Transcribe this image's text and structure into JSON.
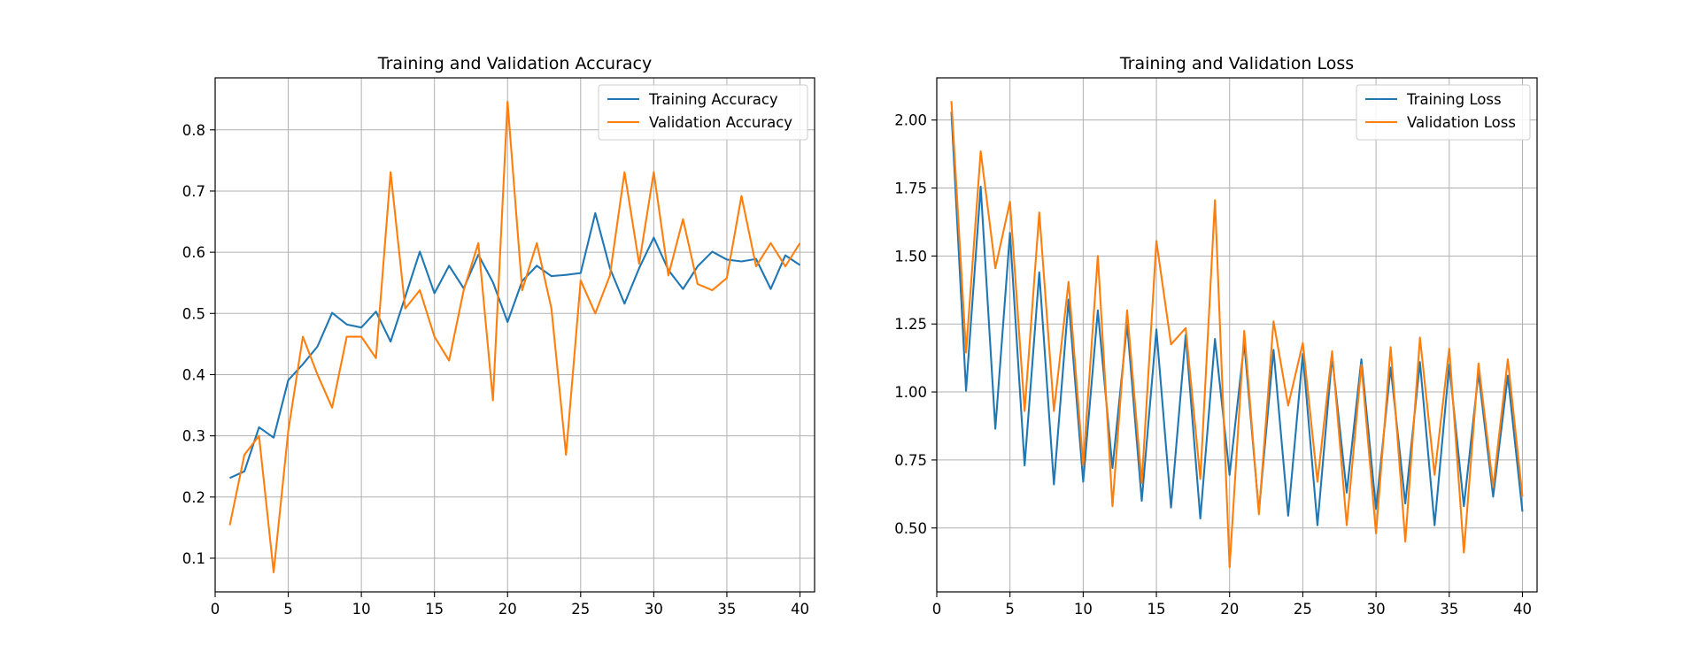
{
  "chart_data": [
    {
      "type": "line",
      "title": "Training and Validation Accuracy",
      "xlabel": "",
      "ylabel": "",
      "xlim": [
        0,
        41
      ],
      "ylim": [
        0.045,
        0.885
      ],
      "xticks": [
        0,
        5,
        10,
        15,
        20,
        25,
        30,
        35,
        40
      ],
      "xtick_labels": [
        "0",
        "5",
        "10",
        "15",
        "20",
        "25",
        "30",
        "35",
        "40"
      ],
      "yticks": [
        0.1,
        0.2,
        0.3,
        0.4,
        0.5,
        0.6,
        0.7,
        0.8
      ],
      "ytick_labels": [
        "0.1",
        "0.2",
        "0.3",
        "0.4",
        "0.5",
        "0.6",
        "0.7",
        "0.8"
      ],
      "grid": true,
      "legend_position": "top-right",
      "x": [
        1,
        2,
        3,
        4,
        5,
        6,
        7,
        8,
        9,
        10,
        11,
        12,
        13,
        14,
        15,
        16,
        17,
        18,
        19,
        20,
        21,
        22,
        23,
        24,
        25,
        26,
        27,
        28,
        29,
        30,
        31,
        32,
        33,
        34,
        35,
        36,
        37,
        38,
        39,
        40
      ],
      "series": [
        {
          "name": "Training Accuracy",
          "color": "#1f77b4",
          "values": [
            0.231,
            0.242,
            0.314,
            0.297,
            0.391,
            0.417,
            0.446,
            0.501,
            0.482,
            0.477,
            0.503,
            0.454,
            0.527,
            0.601,
            0.533,
            0.578,
            0.541,
            0.596,
            0.551,
            0.486,
            0.553,
            0.578,
            0.561,
            0.563,
            0.566,
            0.664,
            0.574,
            0.516,
            0.574,
            0.624,
            0.571,
            0.54,
            0.577,
            0.601,
            0.588,
            0.585,
            0.589,
            0.54,
            0.595,
            0.579
          ]
        },
        {
          "name": "Validation Accuracy",
          "color": "#ff7f0e",
          "values": [
            0.154,
            0.269,
            0.3,
            0.077,
            0.308,
            0.462,
            0.4,
            0.346,
            0.462,
            0.462,
            0.427,
            0.731,
            0.508,
            0.538,
            0.462,
            0.423,
            0.538,
            0.615,
            0.358,
            0.846,
            0.538,
            0.615,
            0.508,
            0.269,
            0.554,
            0.5,
            0.562,
            0.731,
            0.581,
            0.731,
            0.562,
            0.654,
            0.548,
            0.538,
            0.558,
            0.692,
            0.577,
            0.615,
            0.577,
            0.615
          ]
        }
      ]
    },
    {
      "type": "line",
      "title": "Training and Validation Loss",
      "xlabel": "",
      "ylabel": "",
      "xlim": [
        0,
        41
      ],
      "ylim": [
        0.265,
        2.155
      ],
      "xticks": [
        0,
        5,
        10,
        15,
        20,
        25,
        30,
        35,
        40
      ],
      "xtick_labels": [
        "0",
        "5",
        "10",
        "15",
        "20",
        "25",
        "30",
        "35",
        "40"
      ],
      "yticks": [
        0.5,
        0.75,
        1.0,
        1.25,
        1.5,
        1.75,
        2.0
      ],
      "ytick_labels": [
        "0.50",
        "0.75",
        "1.00",
        "1.25",
        "1.50",
        "1.75",
        "2.00"
      ],
      "grid": true,
      "legend_position": "top-right",
      "x": [
        1,
        2,
        3,
        4,
        5,
        6,
        7,
        8,
        9,
        10,
        11,
        12,
        13,
        14,
        15,
        16,
        17,
        18,
        19,
        20,
        21,
        22,
        23,
        24,
        25,
        26,
        27,
        28,
        29,
        30,
        31,
        32,
        33,
        34,
        35,
        36,
        37,
        38,
        39,
        40
      ],
      "series": [
        {
          "name": "Training Loss",
          "color": "#1f77b4",
          "values": [
            2.03,
            1.005,
            1.755,
            0.865,
            1.585,
            0.73,
            1.44,
            0.66,
            1.34,
            0.67,
            1.3,
            0.72,
            1.25,
            0.6,
            1.23,
            0.575,
            1.21,
            0.535,
            1.195,
            0.695,
            1.18,
            0.56,
            1.155,
            0.545,
            1.14,
            0.51,
            1.13,
            0.63,
            1.12,
            0.57,
            1.09,
            0.59,
            1.11,
            0.51,
            1.1,
            0.58,
            1.07,
            0.615,
            1.06,
            0.56
          ]
        },
        {
          "name": "Validation Loss",
          "color": "#ff7f0e",
          "values": [
            2.07,
            1.145,
            1.885,
            1.455,
            1.7,
            0.93,
            1.66,
            0.93,
            1.405,
            0.73,
            1.5,
            0.58,
            1.3,
            0.665,
            1.555,
            1.175,
            1.235,
            0.68,
            1.705,
            0.355,
            1.225,
            0.55,
            1.26,
            0.95,
            1.18,
            0.67,
            1.15,
            0.51,
            1.1,
            0.48,
            1.165,
            0.45,
            1.2,
            0.695,
            1.16,
            0.41,
            1.105,
            0.65,
            1.12,
            0.615
          ]
        }
      ]
    }
  ]
}
